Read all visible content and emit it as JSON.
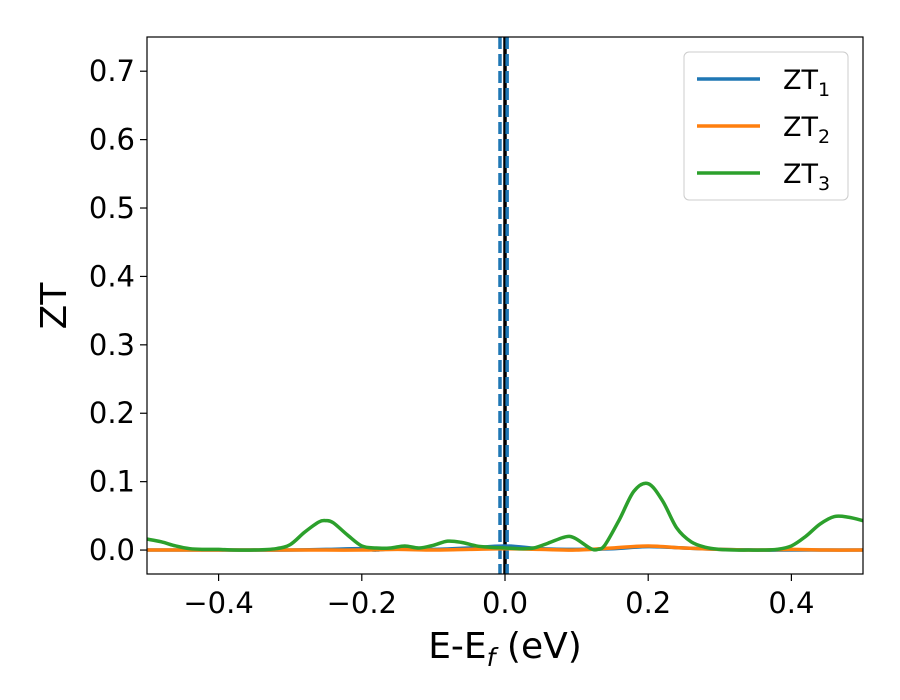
{
  "chart_data": {
    "type": "line",
    "xlabel": {
      "main": "E-E",
      "sub": "f",
      "tail": " (eV)"
    },
    "ylabel": "ZT",
    "xlim": [
      -0.5,
      0.5
    ],
    "ylim": [
      -0.035,
      0.75
    ],
    "grid": false,
    "legend_position": "top-right",
    "xticks": [
      -0.4,
      -0.2,
      0.0,
      0.2,
      0.4
    ],
    "xtick_labels": [
      "−0.4",
      "−0.2",
      "0.0",
      "0.2",
      "0.4"
    ],
    "yticks": [
      0.0,
      0.1,
      0.2,
      0.3,
      0.4,
      0.5,
      0.6,
      0.7
    ],
    "ytick_labels": [
      "0.0",
      "0.1",
      "0.2",
      "0.3",
      "0.4",
      "0.5",
      "0.6",
      "0.7"
    ],
    "vertical_lines": [
      {
        "x": 0.0,
        "color": "#000000",
        "style": "solid"
      },
      {
        "x": -0.007,
        "color": "#1f77b4",
        "style": "dashed"
      },
      {
        "x": 0.003,
        "color": "#1f77b4",
        "style": "dashed"
      }
    ],
    "series": [
      {
        "name": "ZT",
        "sub": "1",
        "color": "#1f77b4",
        "x": [
          -0.5,
          -0.45,
          -0.4,
          -0.35,
          -0.3,
          -0.25,
          -0.2,
          -0.18,
          -0.15,
          -0.12,
          -0.1,
          -0.05,
          0.0,
          0.05,
          0.1,
          0.15,
          0.2,
          0.25,
          0.3,
          0.35,
          0.4,
          0.45,
          0.5
        ],
        "y": [
          0.0,
          0.0,
          0.0,
          0.0,
          0.0,
          0.001,
          0.002,
          0.0,
          0.003,
          0.002,
          0.001,
          0.003,
          0.006,
          0.002,
          0.001,
          0.002,
          0.005,
          0.003,
          0.001,
          0.0,
          0.0,
          0.0,
          0.0
        ]
      },
      {
        "name": "ZT",
        "sub": "2",
        "color": "#ff7f0e",
        "x": [
          -0.5,
          -0.45,
          -0.4,
          -0.35,
          -0.3,
          -0.25,
          -0.2,
          -0.15,
          -0.1,
          -0.05,
          0.0,
          0.05,
          0.1,
          0.15,
          0.2,
          0.25,
          0.3,
          0.35,
          0.4,
          0.45,
          0.5
        ],
        "y": [
          0.0,
          0.0,
          0.0,
          0.0,
          0.0,
          0.0,
          0.0,
          0.001,
          0.0,
          0.001,
          0.002,
          0.001,
          0.0,
          0.003,
          0.006,
          0.003,
          0.001,
          0.0,
          0.001,
          0.0,
          0.0
        ]
      },
      {
        "name": "ZT",
        "sub": "3",
        "color": "#2ca02c",
        "x": [
          -0.5,
          -0.48,
          -0.46,
          -0.44,
          -0.42,
          -0.4,
          -0.38,
          -0.35,
          -0.32,
          -0.3,
          -0.28,
          -0.26,
          -0.25,
          -0.24,
          -0.22,
          -0.2,
          -0.18,
          -0.16,
          -0.14,
          -0.12,
          -0.1,
          -0.08,
          -0.06,
          -0.04,
          -0.02,
          0.0,
          0.02,
          0.04,
          0.06,
          0.08,
          0.09,
          0.1,
          0.12,
          0.13,
          0.14,
          0.16,
          0.18,
          0.2,
          0.22,
          0.24,
          0.26,
          0.28,
          0.3,
          0.32,
          0.34,
          0.36,
          0.38,
          0.4,
          0.42,
          0.44,
          0.46,
          0.48,
          0.5
        ],
        "y": [
          0.016,
          0.012,
          0.006,
          0.002,
          0.001,
          0.001,
          0.0,
          0.0,
          0.002,
          0.008,
          0.026,
          0.041,
          0.043,
          0.04,
          0.022,
          0.006,
          0.003,
          0.003,
          0.006,
          0.003,
          0.007,
          0.013,
          0.011,
          0.006,
          0.004,
          0.003,
          0.002,
          0.003,
          0.01,
          0.018,
          0.02,
          0.016,
          0.002,
          0.001,
          0.008,
          0.045,
          0.086,
          0.097,
          0.072,
          0.032,
          0.012,
          0.004,
          0.001,
          0.0,
          0.0,
          0.0,
          0.001,
          0.006,
          0.02,
          0.038,
          0.049,
          0.048,
          0.043
        ]
      }
    ]
  }
}
